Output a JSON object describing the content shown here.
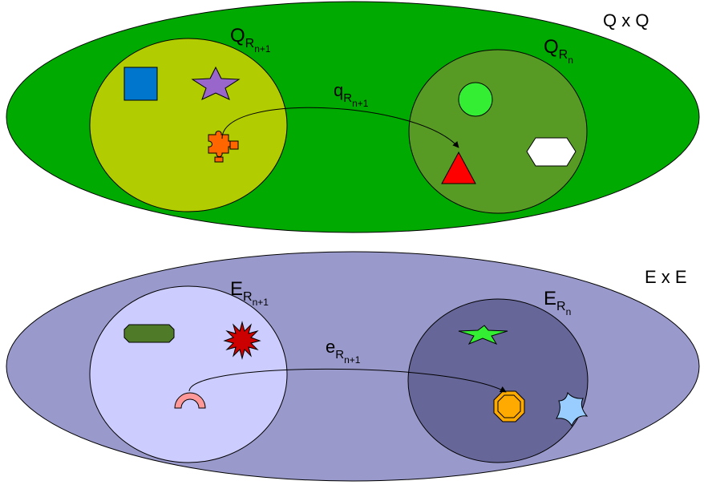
{
  "top_set": {
    "title": "Q x Q",
    "subset_right": {
      "base": "Q",
      "sub": "R",
      "subsub": "n"
    },
    "subset_left": {
      "base": "Q",
      "sub": "R",
      "subsub": "n+1"
    },
    "relation": {
      "base": "q",
      "sub": "R",
      "subsub": "n+1"
    }
  },
  "bottom_set": {
    "title": "E x E",
    "subset_right": {
      "base": "E",
      "sub": "R",
      "subsub": "n"
    },
    "subset_left": {
      "base": "E",
      "sub": "R",
      "subsub": "n+1"
    },
    "relation": {
      "base": "e",
      "sub": "R",
      "subsub": "n+1"
    }
  },
  "colors": {
    "outer_top": "#00aa00",
    "inner_left_top": "#b1cc00",
    "inner_right_top": "#589b24",
    "outer_bottom": "#9999cc",
    "inner_left_bottom": "#ccccff",
    "inner_right_bottom": "#666699"
  },
  "icons": [
    "blue-square-icon",
    "purple-star-icon",
    "orange-puzzle-icon",
    "green-circle-icon",
    "white-hexagon-icon",
    "red-triangle-icon",
    "green-octagon-bar-icon",
    "red-starburst-icon",
    "pink-arc-icon",
    "green-star-icon",
    "orange-octagon-icon",
    "blue-concave-star-icon"
  ]
}
